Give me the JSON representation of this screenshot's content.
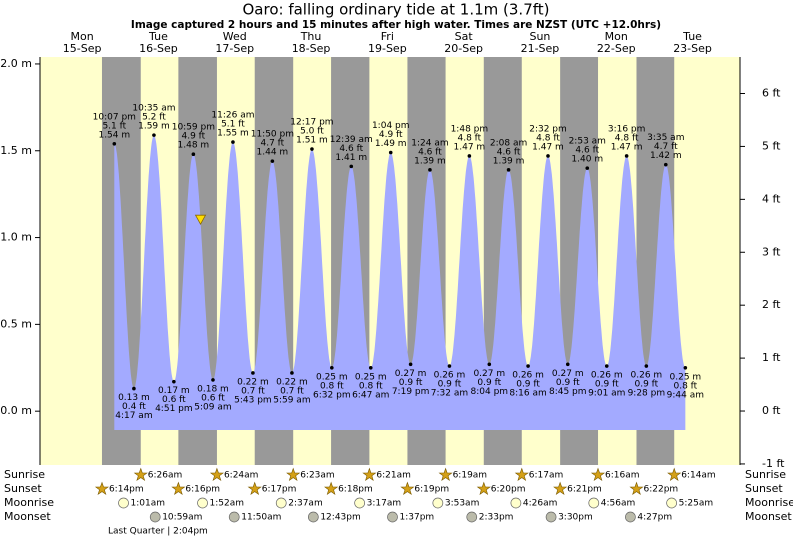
{
  "chart_data": {
    "type": "tide",
    "title": "Oaro: falling  ordinary tide at 1.1m (3.7ft)",
    "subtitle": "Image captured 2 hours and 15 minutes after high water. Times are NZST (UTC +12.0hrs)",
    "current": {
      "level": 1.1
    },
    "ylim": [
      -0.31,
      2.04
    ],
    "yticks": [
      {
        "value": 0,
        "label": "0.0 m"
      },
      {
        "value": 0.5,
        "label": "0.5 m"
      },
      {
        "value": 1,
        "label": "1.0 m"
      },
      {
        "value": 1.5,
        "label": "1.5 m"
      },
      {
        "value": 2,
        "label": "2.0 m"
      }
    ],
    "y2lim": [
      -1.02,
      6.69
    ],
    "y2ticks": [
      {
        "value": -1,
        "label": "-1 ft"
      },
      {
        "value": 0,
        "label": "0 ft"
      },
      {
        "value": 1,
        "label": "1 ft"
      },
      {
        "value": 2,
        "label": "2 ft"
      },
      {
        "value": 3,
        "label": "3 ft"
      },
      {
        "value": 4,
        "label": "4 ft"
      },
      {
        "value": 5,
        "label": "5 ft"
      },
      {
        "value": 6,
        "label": "6 ft"
      }
    ],
    "row_labels": [
      "Sunrise",
      "Sunset",
      "Moonrise",
      "Moonset"
    ],
    "moon_phase": "Last Quarter | 2:04pm",
    "colors": {
      "day": "#ffffcc",
      "night": "#999999",
      "water": "#a3aaff",
      "header": "#dd0000"
    },
    "days": [
      {
        "weekday": "Mon",
        "date": "15-Sep",
        "sunrise": null,
        "sunset": "6:14pm",
        "moonrise": null,
        "moonset": null,
        "tides": [
          {
            "time": "10:07 pm",
            "height": {
              "value": 1.54,
              "label": "1.54 m"
            },
            "feet": {
              "value": 5.1,
              "label": "5.1 ft"
            }
          }
        ]
      },
      {
        "weekday": "Tue",
        "date": "16-Sep",
        "sunrise": "6:26am",
        "sunset": "6:16pm",
        "moonrise": "1:01am",
        "moonset": "10:59am",
        "tides": [
          {
            "time": "4:17 am",
            "height": {
              "value": 0.13,
              "label": "0.13 m"
            },
            "feet": {
              "value": 0.4,
              "label": "0.4 ft"
            }
          },
          {
            "time": "10:35 am",
            "height": {
              "value": 1.59,
              "label": "1.59 m"
            },
            "feet": {
              "value": 5.2,
              "label": "5.2 ft"
            }
          },
          {
            "time": "4:51 pm",
            "height": {
              "value": 0.17,
              "label": "0.17 m"
            },
            "feet": {
              "value": 0.6,
              "label": "0.6 ft"
            }
          },
          {
            "time": "10:59 pm",
            "height": {
              "value": 1.48,
              "label": "1.48 m"
            },
            "feet": {
              "value": 4.9,
              "label": "4.9 ft"
            }
          }
        ]
      },
      {
        "weekday": "Wed",
        "date": "17-Sep",
        "sunrise": "6:24am",
        "sunset": "6:17pm",
        "moonrise": "1:52am",
        "moonset": "11:50am",
        "tides": [
          {
            "time": "5:09 am",
            "height": {
              "value": 0.18,
              "label": "0.18 m"
            },
            "feet": {
              "value": 0.6,
              "label": "0.6 ft"
            }
          },
          {
            "time": "11:26 am",
            "height": {
              "value": 1.55,
              "label": "1.55 m"
            },
            "feet": {
              "value": 5.1,
              "label": "5.1 ft"
            }
          },
          {
            "time": "5:43 pm",
            "height": {
              "value": 0.22,
              "label": "0.22 m"
            },
            "feet": {
              "value": 0.7,
              "label": "0.7 ft"
            }
          },
          {
            "time": "11:50 pm",
            "height": {
              "value": 1.44,
              "label": "1.44 m"
            },
            "feet": {
              "value": 4.7,
              "label": "4.7 ft"
            }
          }
        ]
      },
      {
        "weekday": "Thu",
        "date": "18-Sep",
        "sunrise": "6:23am",
        "sunset": "6:18pm",
        "moonrise": "2:37am",
        "moonset": "12:43pm",
        "tides": [
          {
            "time": "5:59 am",
            "height": {
              "value": 0.22,
              "label": "0.22 m"
            },
            "feet": {
              "value": 0.7,
              "label": "0.7 ft"
            }
          },
          {
            "time": "12:17 pm",
            "height": {
              "value": 1.51,
              "label": "1.51 m"
            },
            "feet": {
              "value": 5.0,
              "label": "5.0 ft"
            }
          },
          {
            "time": "6:32 pm",
            "height": {
              "value": 0.25,
              "label": "0.25 m"
            },
            "feet": {
              "value": 0.8,
              "label": "0.8 ft"
            }
          }
        ]
      },
      {
        "weekday": "Fri",
        "date": "19-Sep",
        "sunrise": "6:21am",
        "sunset": "6:19pm",
        "moonrise": "3:17am",
        "moonset": "1:37pm",
        "tides": [
          {
            "time": "12:39 am",
            "height": {
              "value": 1.41,
              "label": "1.41 m"
            },
            "feet": {
              "value": 4.6,
              "label": "4.6 ft"
            }
          },
          {
            "time": "6:47 am",
            "height": {
              "value": 0.25,
              "label": "0.25 m"
            },
            "feet": {
              "value": 0.8,
              "label": "0.8 ft"
            }
          },
          {
            "time": "1:04 pm",
            "height": {
              "value": 1.49,
              "label": "1.49 m"
            },
            "feet": {
              "value": 4.9,
              "label": "4.9 ft"
            }
          },
          {
            "time": "7:19 pm",
            "height": {
              "value": 0.27,
              "label": "0.27 m"
            },
            "feet": {
              "value": 0.9,
              "label": "0.9 ft"
            }
          }
        ]
      },
      {
        "weekday": "Sat",
        "date": "20-Sep",
        "sunrise": "6:19am",
        "sunset": "6:20pm",
        "moonrise": "3:53am",
        "moonset": "2:33pm",
        "tides": [
          {
            "time": "1:24 am",
            "height": {
              "value": 1.39,
              "label": "1.39 m"
            },
            "feet": {
              "value": 4.6,
              "label": "4.6 ft"
            }
          },
          {
            "time": "7:32 am",
            "height": {
              "value": 0.26,
              "label": "0.26 m"
            },
            "feet": {
              "value": 0.9,
              "label": "0.9 ft"
            }
          },
          {
            "time": "1:48 pm",
            "height": {
              "value": 1.47,
              "label": "1.47 m"
            },
            "feet": {
              "value": 4.8,
              "label": "4.8 ft"
            }
          },
          {
            "time": "8:04 pm",
            "height": {
              "value": 0.27,
              "label": "0.27 m"
            },
            "feet": {
              "value": 0.9,
              "label": "0.9 ft"
            }
          }
        ]
      },
      {
        "weekday": "Sun",
        "date": "21-Sep",
        "sunrise": "6:17am",
        "sunset": "6:21pm",
        "moonrise": "4:26am",
        "moonset": "3:30pm",
        "tides": [
          {
            "time": "2:08 am",
            "height": {
              "value": 1.39,
              "label": "1.39 m"
            },
            "feet": {
              "value": 4.6,
              "label": "4.6 ft"
            }
          },
          {
            "time": "8:16 am",
            "height": {
              "value": 0.26,
              "label": "0.26 m"
            },
            "feet": {
              "value": 0.9,
              "label": "0.9 ft"
            }
          },
          {
            "time": "2:32 pm",
            "height": {
              "value": 1.47,
              "label": "1.47 m"
            },
            "feet": {
              "value": 4.8,
              "label": "4.8 ft"
            }
          },
          {
            "time": "8:45 pm",
            "height": {
              "value": 0.27,
              "label": "0.27 m"
            },
            "feet": {
              "value": 0.9,
              "label": "0.9 ft"
            }
          }
        ]
      },
      {
        "weekday": "Mon",
        "date": "22-Sep",
        "sunrise": "6:16am",
        "sunset": "6:22pm",
        "moonrise": "4:56am",
        "moonset": "4:27pm",
        "tides": [
          {
            "time": "2:53 am",
            "height": {
              "value": 1.4,
              "label": "1.40 m"
            },
            "feet": {
              "value": 4.6,
              "label": "4.6 ft"
            }
          },
          {
            "time": "9:01 am",
            "height": {
              "value": 0.26,
              "label": "0.26 m"
            },
            "feet": {
              "value": 0.9,
              "label": "0.9 ft"
            }
          },
          {
            "time": "3:16 pm",
            "height": {
              "value": 1.47,
              "label": "1.47 m"
            },
            "feet": {
              "value": 4.8,
              "label": "4.8 ft"
            }
          },
          {
            "time": "9:28 pm",
            "height": {
              "value": 0.26,
              "label": "0.26 m"
            },
            "feet": {
              "value": 0.9,
              "label": "0.9 ft"
            }
          }
        ]
      },
      {
        "weekday": "Tue",
        "date": "23-Sep",
        "sunrise": "6:14am",
        "sunset": null,
        "moonrise": "5:25am",
        "moonset": null,
        "tides": [
          {
            "time": "3:35 am",
            "height": {
              "value": 1.42,
              "label": "1.42 m"
            },
            "feet": {
              "value": 4.7,
              "label": "4.7 ft"
            }
          },
          {
            "time": "9:44 am",
            "height": {
              "value": 0.25,
              "label": "0.25 m"
            },
            "feet": {
              "value": 0.8,
              "label": "0.8 ft"
            }
          }
        ]
      }
    ]
  }
}
